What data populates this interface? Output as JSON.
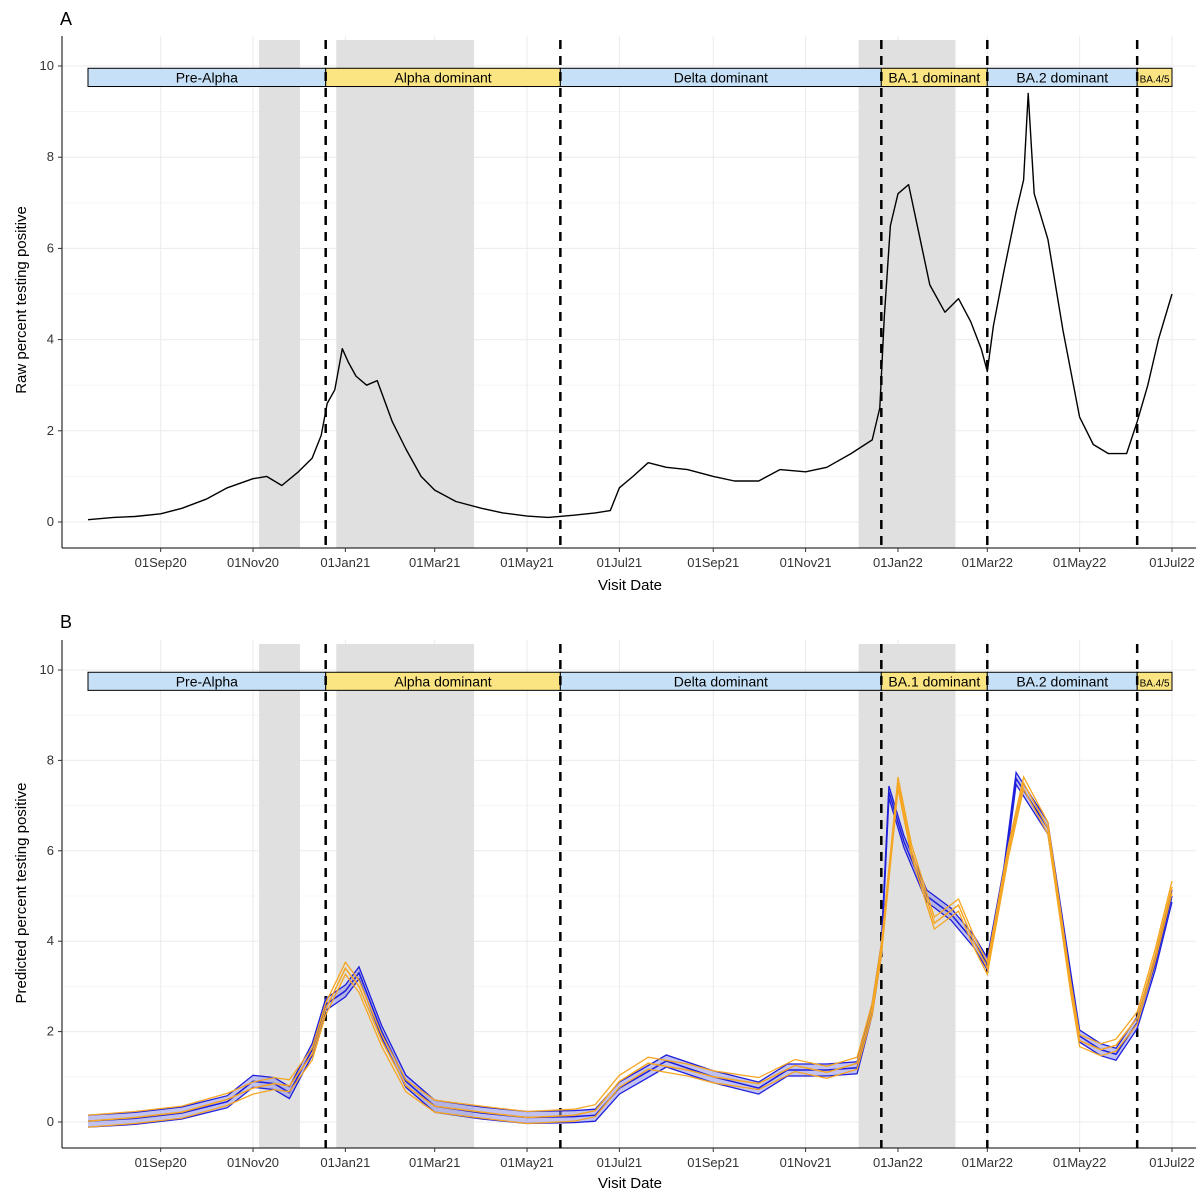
{
  "panels": [
    {
      "id": "A",
      "letter": "A",
      "ylabel": "Raw percent testing positive",
      "xlabel": "Visit Date"
    },
    {
      "id": "B",
      "letter": "B",
      "ylabel": "Predicted percent testing positive",
      "xlabel": "Visit Date"
    }
  ],
  "colors": {
    "raw_line": "#000000",
    "blue_line": "#1f1fdc",
    "blue_band": "#8f8fe6",
    "orange_line": "#f5a623",
    "shade": "#e0e0e0",
    "grid": "#ebebeb",
    "prealpha_fill": "#c6e0f7",
    "alpha_fill": "#fbe583",
    "delta_fill": "#c6e0f7",
    "ba1_fill": "#fbe583",
    "ba2_fill": "#c6e0f7",
    "ba45_fill": "#fbe583"
  },
  "chart_data": [
    {
      "type": "line",
      "panel": "A",
      "ylabel": "Raw percent testing positive",
      "xlabel": "Visit Date",
      "xlim": [
        "2020-07-15",
        "2022-07-01"
      ],
      "ylim": [
        0,
        10
      ],
      "y_ticks": [
        0,
        2,
        4,
        6,
        8,
        10
      ],
      "x_ticks": [
        {
          "date": "2020-09-01",
          "label": "01Sep20"
        },
        {
          "date": "2020-11-01",
          "label": "01Nov20"
        },
        {
          "date": "2021-01-01",
          "label": "01Jan21"
        },
        {
          "date": "2021-03-01",
          "label": "01Mar21"
        },
        {
          "date": "2021-05-01",
          "label": "01May21"
        },
        {
          "date": "2021-07-01",
          "label": "01Jul21"
        },
        {
          "date": "2021-09-01",
          "label": "01Sep21"
        },
        {
          "date": "2021-11-01",
          "label": "01Nov21"
        },
        {
          "date": "2022-01-01",
          "label": "01Jan22"
        },
        {
          "date": "2022-03-01",
          "label": "01Mar22"
        },
        {
          "date": "2022-05-01",
          "label": "01May22"
        },
        {
          "date": "2022-07-01",
          "label": "01Jul22"
        }
      ],
      "grid": true,
      "shaded_periods": [
        {
          "start": "2020-11-05",
          "end": "2020-12-02"
        },
        {
          "start": "2020-12-26",
          "end": "2021-03-27"
        },
        {
          "start": "2021-12-06",
          "end": "2022-02-08"
        }
      ],
      "variant_periods": [
        {
          "label": "Pre-Alpha",
          "start": "2020-07-15",
          "end": "2020-12-19",
          "fill": "prealpha"
        },
        {
          "label": "Alpha dominant",
          "start": "2020-12-19",
          "end": "2021-05-23",
          "fill": "alpha"
        },
        {
          "label": "Delta dominant",
          "start": "2021-05-23",
          "end": "2021-12-21",
          "fill": "delta"
        },
        {
          "label": "BA.1 dominant",
          "start": "2021-12-21",
          "end": "2022-03-01",
          "fill": "ba1"
        },
        {
          "label": "BA.2 dominant",
          "start": "2022-03-01",
          "end": "2022-06-08",
          "fill": "ba2"
        },
        {
          "label": "BA.4/5",
          "start": "2022-06-08",
          "end": "2022-07-01",
          "fill": "ba45"
        }
      ],
      "dashed_lines": [
        "2020-12-19",
        "2021-05-23",
        "2021-12-21",
        "2022-03-01",
        "2022-06-08"
      ],
      "series": [
        {
          "points": [
            [
              "2020-07-15",
              0.05
            ],
            [
              "2020-08-01",
              0.1
            ],
            [
              "2020-08-15",
              0.12
            ],
            [
              "2020-09-01",
              0.18
            ],
            [
              "2020-09-15",
              0.3
            ],
            [
              "2020-10-01",
              0.5
            ],
            [
              "2020-10-15",
              0.75
            ],
            [
              "2020-11-01",
              0.95
            ],
            [
              "2020-11-10",
              1.0
            ],
            [
              "2020-11-20",
              0.8
            ],
            [
              "2020-12-01",
              1.1
            ],
            [
              "2020-12-10",
              1.4
            ],
            [
              "2020-12-16",
              1.9
            ],
            [
              "2020-12-20",
              2.6
            ],
            [
              "2020-12-25",
              2.9
            ],
            [
              "2020-12-30",
              3.8
            ],
            [
              "2021-01-03",
              3.5
            ],
            [
              "2021-01-08",
              3.2
            ],
            [
              "2021-01-15",
              3.0
            ],
            [
              "2021-01-22",
              3.1
            ],
            [
              "2021-02-01",
              2.2
            ],
            [
              "2021-02-10",
              1.6
            ],
            [
              "2021-02-20",
              1.0
            ],
            [
              "2021-03-01",
              0.7
            ],
            [
              "2021-03-15",
              0.45
            ],
            [
              "2021-04-01",
              0.3
            ],
            [
              "2021-04-15",
              0.2
            ],
            [
              "2021-05-01",
              0.13
            ],
            [
              "2021-05-15",
              0.1
            ],
            [
              "2021-06-01",
              0.15
            ],
            [
              "2021-06-15",
              0.2
            ],
            [
              "2021-06-25",
              0.25
            ],
            [
              "2021-07-01",
              0.75
            ],
            [
              "2021-07-10",
              1.0
            ],
            [
              "2021-07-20",
              1.3
            ],
            [
              "2021-08-01",
              1.2
            ],
            [
              "2021-08-15",
              1.15
            ],
            [
              "2021-09-01",
              1.0
            ],
            [
              "2021-09-15",
              0.9
            ],
            [
              "2021-10-01",
              0.9
            ],
            [
              "2021-10-15",
              1.15
            ],
            [
              "2021-11-01",
              1.1
            ],
            [
              "2021-11-15",
              1.2
            ],
            [
              "2021-12-01",
              1.5
            ],
            [
              "2021-12-15",
              1.8
            ],
            [
              "2021-12-20",
              2.5
            ],
            [
              "2021-12-23",
              4.5
            ],
            [
              "2021-12-27",
              6.5
            ],
            [
              "2022-01-01",
              7.2
            ],
            [
              "2022-01-08",
              7.4
            ],
            [
              "2022-01-15",
              6.3
            ],
            [
              "2022-01-22",
              5.2
            ],
            [
              "2022-02-01",
              4.6
            ],
            [
              "2022-02-10",
              4.9
            ],
            [
              "2022-02-18",
              4.4
            ],
            [
              "2022-02-25",
              3.8
            ],
            [
              "2022-03-01",
              3.3
            ],
            [
              "2022-03-05",
              4.3
            ],
            [
              "2022-03-12",
              5.5
            ],
            [
              "2022-03-20",
              6.8
            ],
            [
              "2022-03-25",
              7.5
            ],
            [
              "2022-03-28",
              9.4
            ],
            [
              "2022-04-01",
              7.2
            ],
            [
              "2022-04-10",
              6.2
            ],
            [
              "2022-04-20",
              4.2
            ],
            [
              "2022-05-01",
              2.3
            ],
            [
              "2022-05-10",
              1.7
            ],
            [
              "2022-05-20",
              1.5
            ],
            [
              "2022-06-01",
              1.5
            ],
            [
              "2022-06-08",
              2.2
            ],
            [
              "2022-06-15",
              3.0
            ],
            [
              "2022-06-22",
              4.0
            ],
            [
              "2022-07-01",
              5.0
            ]
          ]
        }
      ]
    },
    {
      "type": "line",
      "panel": "B",
      "ylabel": "Predicted percent testing positive",
      "xlabel": "Visit Date",
      "xlim": [
        "2020-07-15",
        "2022-07-01"
      ],
      "ylim": [
        0,
        10
      ],
      "y_ticks": [
        0,
        2,
        4,
        6,
        8,
        10
      ],
      "x_ticks": [
        {
          "date": "2020-09-01",
          "label": "01Sep20"
        },
        {
          "date": "2020-11-01",
          "label": "01Nov20"
        },
        {
          "date": "2021-01-01",
          "label": "01Jan21"
        },
        {
          "date": "2021-03-01",
          "label": "01Mar21"
        },
        {
          "date": "2021-05-01",
          "label": "01May21"
        },
        {
          "date": "2021-07-01",
          "label": "01Jul21"
        },
        {
          "date": "2021-09-01",
          "label": "01Sep21"
        },
        {
          "date": "2021-11-01",
          "label": "01Nov21"
        },
        {
          "date": "2022-01-01",
          "label": "01Jan22"
        },
        {
          "date": "2022-03-01",
          "label": "01Mar22"
        },
        {
          "date": "2022-05-01",
          "label": "01May22"
        },
        {
          "date": "2022-07-01",
          "label": "01Jul22"
        }
      ],
      "grid": true,
      "shaded_periods": [
        {
          "start": "2020-11-05",
          "end": "2020-12-02"
        },
        {
          "start": "2020-12-26",
          "end": "2021-03-27"
        },
        {
          "start": "2021-12-06",
          "end": "2022-02-08"
        }
      ],
      "variant_periods": [
        {
          "label": "Pre-Alpha",
          "start": "2020-07-15",
          "end": "2020-12-19",
          "fill": "prealpha"
        },
        {
          "label": "Alpha dominant",
          "start": "2020-12-19",
          "end": "2021-05-23",
          "fill": "alpha"
        },
        {
          "label": "Delta dominant",
          "start": "2021-05-23",
          "end": "2021-12-21",
          "fill": "delta"
        },
        {
          "label": "BA.1 dominant",
          "start": "2021-12-21",
          "end": "2022-03-01",
          "fill": "ba1"
        },
        {
          "label": "BA.2 dominant",
          "start": "2022-03-01",
          "end": "2022-06-08",
          "fill": "ba2"
        },
        {
          "label": "BA.4/5",
          "start": "2022-06-08",
          "end": "2022-07-01",
          "fill": "ba45"
        }
      ],
      "dashed_lines": [
        "2020-12-19",
        "2021-05-23",
        "2021-12-21",
        "2022-03-01",
        "2022-06-08"
      ],
      "series": [
        {
          "color": "blue",
          "points": [
            [
              "2020-07-15",
              0.02
            ],
            [
              "2020-08-15",
              0.08
            ],
            [
              "2020-09-15",
              0.2
            ],
            [
              "2020-10-15",
              0.45
            ],
            [
              "2020-11-01",
              0.9
            ],
            [
              "2020-11-15",
              0.85
            ],
            [
              "2020-11-25",
              0.65
            ],
            [
              "2020-12-10",
              1.6
            ],
            [
              "2020-12-19",
              2.6
            ],
            [
              "2021-01-01",
              2.9
            ],
            [
              "2021-01-10",
              3.3
            ],
            [
              "2021-01-25",
              2.0
            ],
            [
              "2021-02-10",
              0.9
            ],
            [
              "2021-03-01",
              0.35
            ],
            [
              "2021-04-01",
              0.2
            ],
            [
              "2021-05-01",
              0.1
            ],
            [
              "2021-06-01",
              0.12
            ],
            [
              "2021-06-15",
              0.15
            ],
            [
              "2021-07-01",
              0.75
            ],
            [
              "2021-08-01",
              1.35
            ],
            [
              "2021-09-01",
              1.0
            ],
            [
              "2021-10-01",
              0.75
            ],
            [
              "2021-10-20",
              1.15
            ],
            [
              "2021-11-15",
              1.15
            ],
            [
              "2021-12-05",
              1.2
            ],
            [
              "2021-12-15",
              2.5
            ],
            [
              "2021-12-21",
              3.8
            ],
            [
              "2021-12-26",
              7.3
            ],
            [
              "2022-01-05",
              6.2
            ],
            [
              "2022-01-20",
              5.0
            ],
            [
              "2022-02-05",
              4.6
            ],
            [
              "2022-02-20",
              4.0
            ],
            [
              "2022-03-01",
              3.5
            ],
            [
              "2022-03-12",
              5.5
            ],
            [
              "2022-03-20",
              7.6
            ],
            [
              "2022-04-10",
              6.5
            ],
            [
              "2022-04-25",
              3.2
            ],
            [
              "2022-05-01",
              1.9
            ],
            [
              "2022-05-15",
              1.6
            ],
            [
              "2022-05-25",
              1.5
            ],
            [
              "2022-06-08",
              2.2
            ],
            [
              "2022-06-20",
              3.5
            ],
            [
              "2022-07-01",
              5.0
            ]
          ]
        },
        {
          "color": "orange",
          "points": [
            [
              "2020-07-15",
              0.02
            ],
            [
              "2020-08-15",
              0.1
            ],
            [
              "2020-09-15",
              0.22
            ],
            [
              "2020-10-15",
              0.5
            ],
            [
              "2020-11-01",
              0.75
            ],
            [
              "2020-11-15",
              0.85
            ],
            [
              "2020-11-25",
              0.8
            ],
            [
              "2020-12-10",
              1.5
            ],
            [
              "2020-12-19",
              2.5
            ],
            [
              "2021-01-01",
              3.4
            ],
            [
              "2021-01-10",
              3.0
            ],
            [
              "2021-01-25",
              1.8
            ],
            [
              "2021-02-10",
              0.8
            ],
            [
              "2021-03-01",
              0.35
            ],
            [
              "2021-04-01",
              0.22
            ],
            [
              "2021-05-01",
              0.1
            ],
            [
              "2021-06-01",
              0.15
            ],
            [
              "2021-06-15",
              0.25
            ],
            [
              "2021-07-01",
              0.9
            ],
            [
              "2021-07-20",
              1.3
            ],
            [
              "2021-08-15",
              1.15
            ],
            [
              "2021-09-01",
              1.0
            ],
            [
              "2021-10-01",
              0.85
            ],
            [
              "2021-10-25",
              1.25
            ],
            [
              "2021-11-15",
              1.1
            ],
            [
              "2021-12-05",
              1.3
            ],
            [
              "2021-12-15",
              2.5
            ],
            [
              "2021-12-21",
              3.8
            ],
            [
              "2022-01-01",
              7.5
            ],
            [
              "2022-01-10",
              6.0
            ],
            [
              "2022-01-25",
              4.4
            ],
            [
              "2022-02-10",
              4.8
            ],
            [
              "2022-02-20",
              4.0
            ],
            [
              "2022-03-01",
              3.4
            ],
            [
              "2022-03-15",
              6.0
            ],
            [
              "2022-03-25",
              7.5
            ],
            [
              "2022-04-10",
              6.5
            ],
            [
              "2022-04-25",
              3.0
            ],
            [
              "2022-05-01",
              1.8
            ],
            [
              "2022-05-15",
              1.6
            ],
            [
              "2022-05-25",
              1.7
            ],
            [
              "2022-06-08",
              2.3
            ],
            [
              "2022-06-20",
              3.7
            ],
            [
              "2022-07-01",
              5.2
            ]
          ]
        }
      ]
    }
  ]
}
